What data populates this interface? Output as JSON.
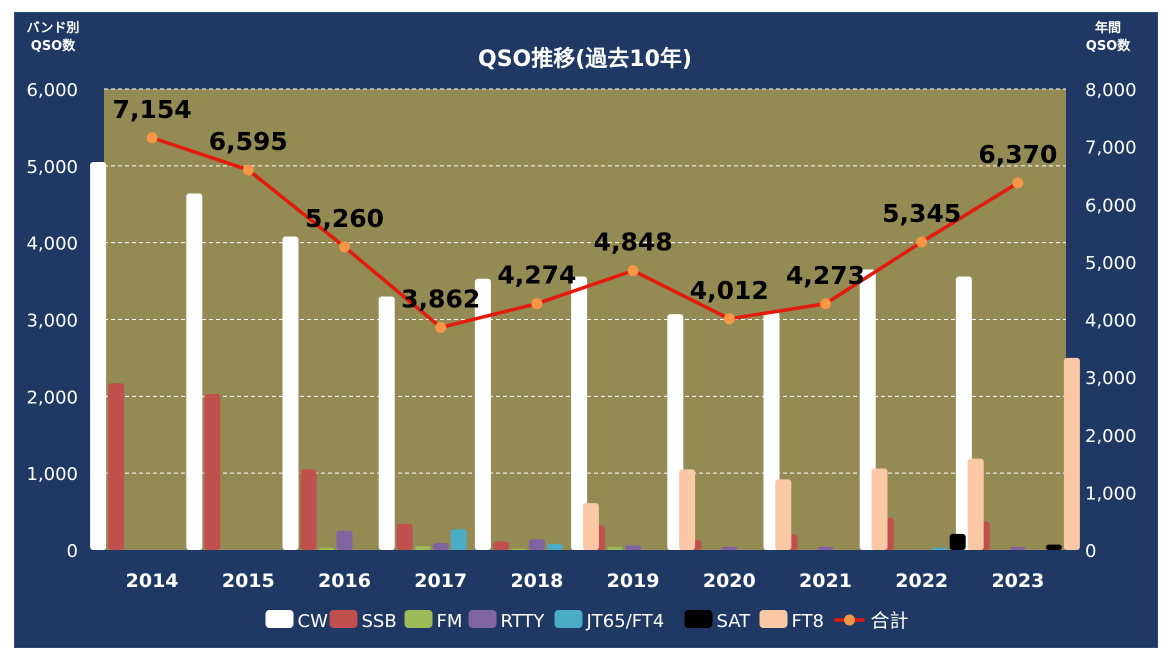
{
  "chart_data": {
    "type": "bar",
    "title": "QSO推移(過去10年)",
    "ylabel_left": [
      "バンド別",
      "QSO数"
    ],
    "ylabel_right": [
      "年間",
      "QSO数"
    ],
    "categories": [
      "2014",
      "2015",
      "2016",
      "2017",
      "2018",
      "2019",
      "2020",
      "2021",
      "2022",
      "2023"
    ],
    "ylim_left": [
      0,
      6000
    ],
    "ylim_right": [
      0,
      8000
    ],
    "yticks_left": [
      "0",
      "1,000",
      "2,000",
      "3,000",
      "4,000",
      "5,000",
      "6,000"
    ],
    "yticks_right": [
      "0",
      "1,000",
      "2,000",
      "3,000",
      "4,000",
      "5,000",
      "6,000",
      "7,000",
      "8,000"
    ],
    "grid": true,
    "legend_position": "bottom",
    "series": [
      {
        "name": "CW",
        "color": "#ffffff",
        "values": [
          5050,
          4640,
          4080,
          3300,
          3530,
          3560,
          3070,
          3100,
          3650,
          3560
        ]
      },
      {
        "name": "SSB",
        "color": "#c0504d",
        "values": [
          2170,
          2030,
          1050,
          340,
          110,
          320,
          130,
          200,
          420,
          370
        ]
      },
      {
        "name": "FM",
        "color": "#9bbb59",
        "values": [
          0,
          0,
          30,
          50,
          20,
          40,
          0,
          0,
          0,
          0
        ]
      },
      {
        "name": "RTTY",
        "color": "#8064a2",
        "values": [
          0,
          0,
          250,
          90,
          140,
          60,
          40,
          40,
          0,
          40
        ]
      },
      {
        "name": "JT65/FT4",
        "color": "#4bacc6",
        "values": [
          0,
          0,
          0,
          270,
          80,
          0,
          0,
          0,
          30,
          0
        ]
      },
      {
        "name": "SAT",
        "color": "#000000",
        "values": [
          0,
          0,
          0,
          0,
          0,
          0,
          0,
          0,
          210,
          70
        ]
      },
      {
        "name": "FT8",
        "color": "#fac8a5",
        "values": [
          0,
          0,
          0,
          0,
          610,
          1050,
          920,
          1060,
          1190,
          2500
        ]
      }
    ],
    "total": {
      "name": "合計",
      "color": "#e31a0c",
      "marker_color": "#f79646",
      "axis": "right",
      "values": [
        7154,
        6595,
        5260,
        3862,
        4274,
        4848,
        4012,
        4273,
        5345,
        6370
      ],
      "labels": [
        "7,154",
        "6,595",
        "5,260",
        "3,862",
        "4,274",
        "4,848",
        "4,012",
        "4,273",
        "5,345",
        "6,370"
      ]
    }
  },
  "colors": {
    "background": "#1f3864",
    "plot_area": "#948a54",
    "gridline": "#ffffff"
  }
}
